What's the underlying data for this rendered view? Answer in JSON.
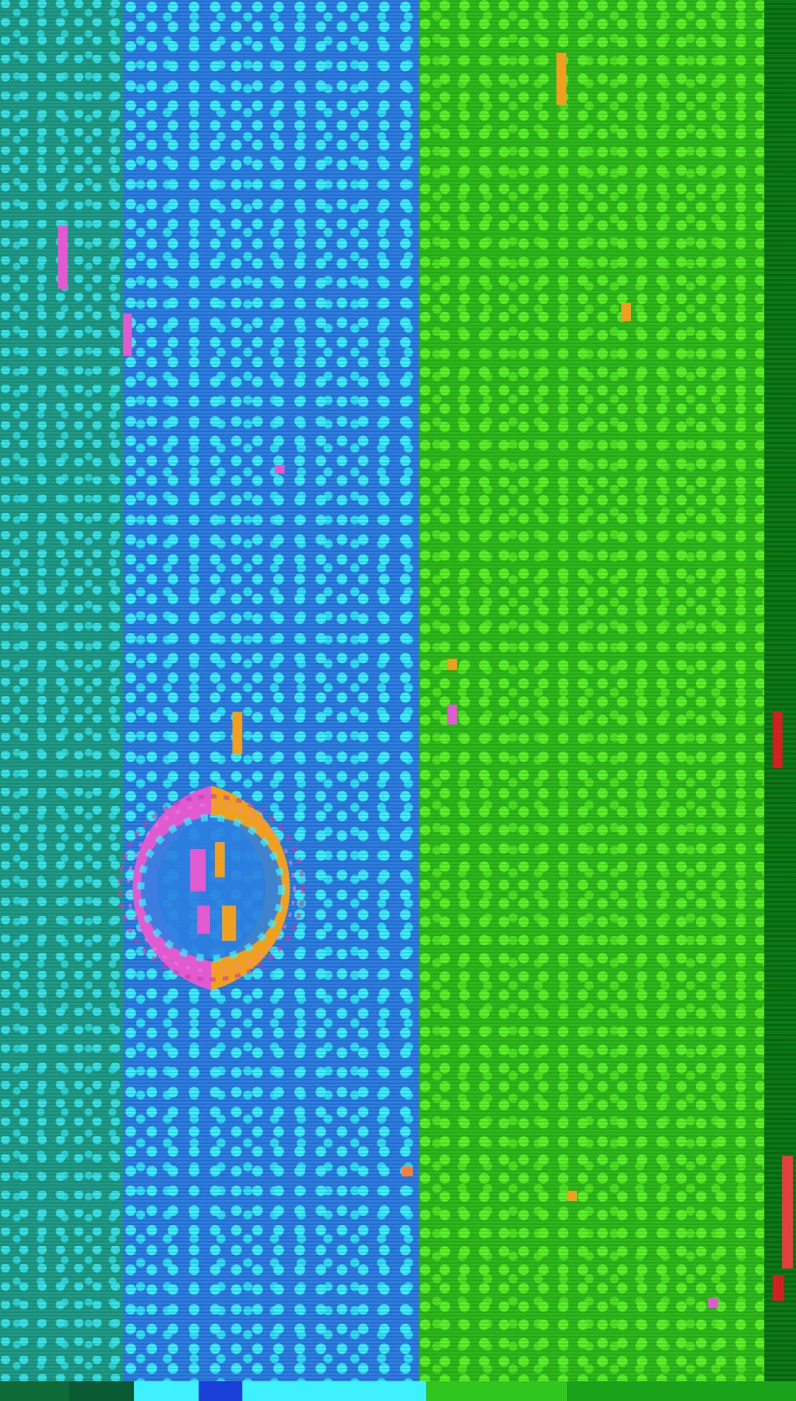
{
  "image": {
    "description_free": true,
    "colors": {
      "teal_band": "#1e9a86",
      "blue_band": "#2c7fe0",
      "green_band": "#2fb81c",
      "edge": "#0b7a16",
      "ring_pink": "#e05ad0",
      "ring_orange": "#f0a020"
    },
    "icons": [
      "ring-shape"
    ]
  }
}
